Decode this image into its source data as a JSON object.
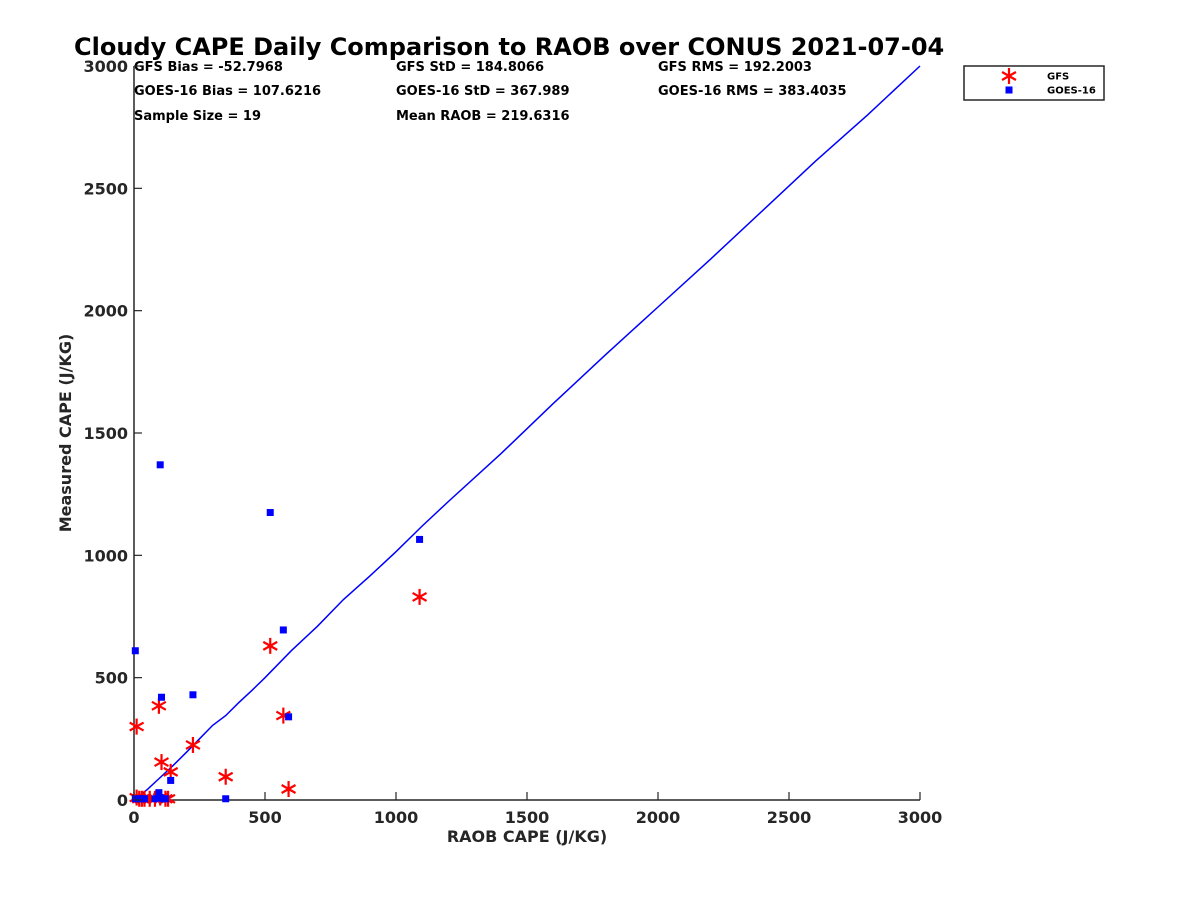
{
  "chart_data": {
    "type": "scatter",
    "title": "Cloudy CAPE Daily Comparison to RAOB over CONUS 2021-07-04",
    "xlabel": "RAOB CAPE (J/KG)",
    "ylabel": "Measured CAPE (J/KG)",
    "xlim": [
      0,
      3000
    ],
    "ylim": [
      0,
      3000
    ],
    "xticks": [
      0,
      500,
      1000,
      1500,
      2000,
      2500,
      3000
    ],
    "yticks": [
      0,
      500,
      1000,
      1500,
      2000,
      2500,
      3000
    ],
    "grid": false,
    "legend_position": "top-right",
    "stats": [
      [
        "GFS Bias = -52.7968",
        "GFS StD = 184.8066",
        "GFS RMS = 192.2003"
      ],
      [
        "GOES-16 Bias = 107.6216",
        "GOES-16 StD = 367.989",
        "GOES-16 RMS = 383.4035"
      ],
      [
        "Sample Size = 19",
        "Mean RAOB = 219.6316",
        ""
      ]
    ],
    "series": [
      {
        "name": "GFS",
        "marker": "asterisk",
        "color": "#ff0000",
        "x": [
          10,
          10,
          20,
          40,
          95,
          100,
          105,
          120,
          140,
          225,
          350,
          520,
          570,
          590,
          1090,
          60,
          80,
          130,
          30
        ],
        "y": [
          300,
          10,
          5,
          5,
          385,
          10,
          155,
          5,
          115,
          225,
          95,
          630,
          345,
          45,
          830,
          5,
          5,
          5,
          5
        ]
      },
      {
        "name": "GOES-16",
        "marker": "square",
        "color": "#0000ff",
        "x": [
          5,
          5,
          20,
          40,
          95,
          100,
          100,
          105,
          120,
          140,
          225,
          350,
          520,
          570,
          590,
          1090,
          80,
          110,
          30
        ],
        "y": [
          610,
          5,
          5,
          5,
          30,
          1370,
          10,
          420,
          5,
          80,
          430,
          5,
          1175,
          695,
          340,
          1065,
          5,
          5,
          5
        ]
      }
    ],
    "fit_line": {
      "color": "#0000ff",
      "x": [
        0,
        50,
        100,
        150,
        200,
        250,
        300,
        350,
        400,
        450,
        500,
        600,
        700,
        800,
        900,
        1000,
        1100,
        1200,
        1400,
        1600,
        1800,
        2000,
        2200,
        2400,
        2600,
        2800,
        3000
      ],
      "y": [
        0,
        42,
        92,
        142,
        195,
        250,
        305,
        345,
        398,
        448,
        500,
        610,
        710,
        820,
        915,
        1015,
        1120,
        1220,
        1415,
        1620,
        1820,
        2015,
        2210,
        2410,
        2610,
        2800,
        3000
      ]
    }
  }
}
